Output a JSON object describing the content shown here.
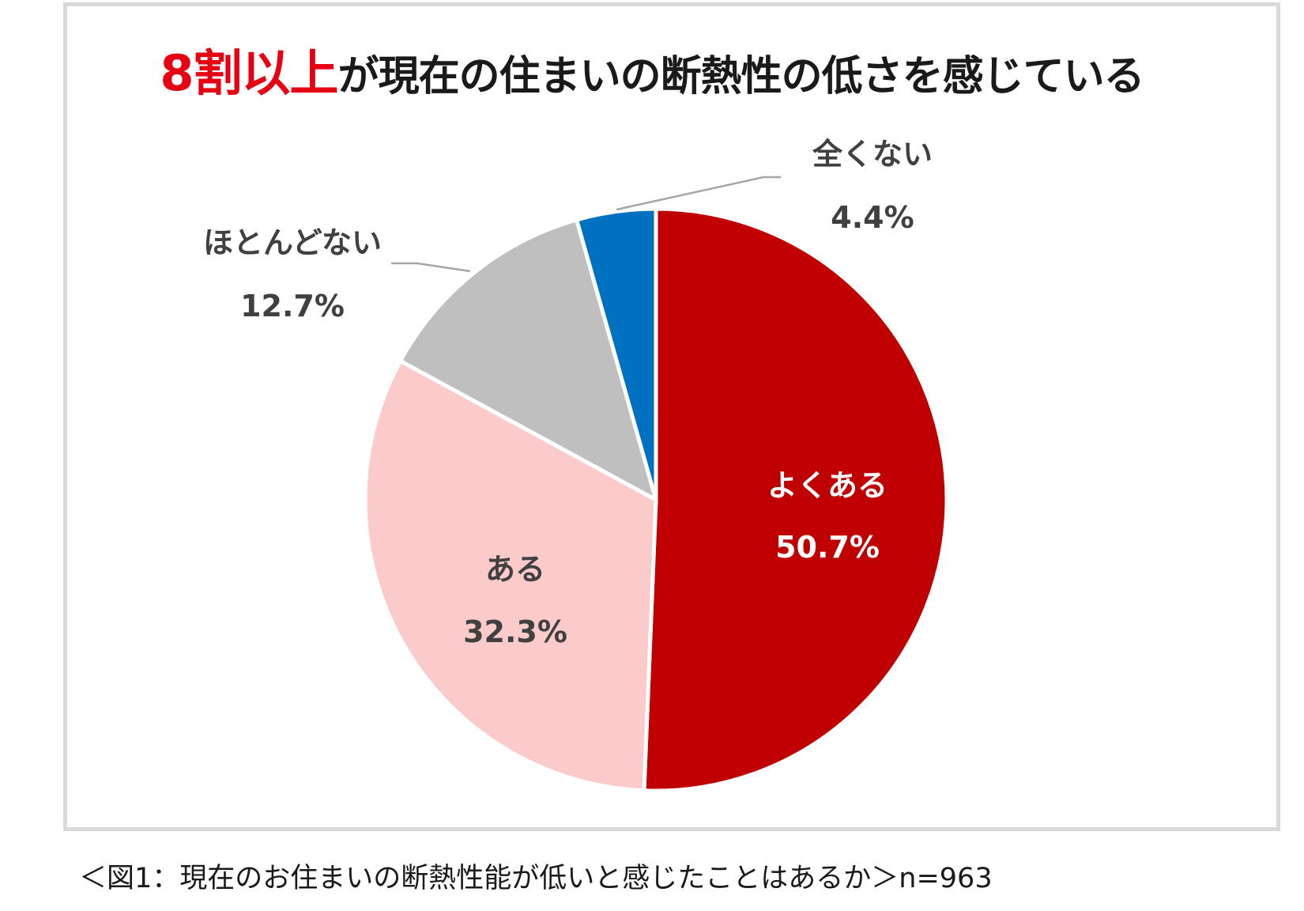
{
  "title": {
    "highlight": "8割以上",
    "rest": "が現在の住まいの断熱性の低さを感じている"
  },
  "caption": "＜図1：現在のお住まいの断熱性能が低いと感じたことはあるか＞n=963",
  "chart_data": {
    "type": "pie",
    "start": "12 o'clock, clockwise",
    "slices": [
      {
        "label": "よくある",
        "value": 50.7,
        "display": "50.7%",
        "color": "#c00000",
        "label_color": "#ffffff"
      },
      {
        "label": "ある",
        "value": 32.3,
        "display": "32.3%",
        "color": "#fbcbcb",
        "label_color": "#404040"
      },
      {
        "label": "ほとんどない",
        "value": 12.7,
        "display": "12.7%",
        "color": "#bfbfbf",
        "label_color": "#404040"
      },
      {
        "label": "全くない",
        "value": 4.4,
        "display": "4.4%",
        "color": "#0070c0",
        "label_color": "#404040"
      }
    ],
    "leader_line_color": "#a6a6a6"
  }
}
